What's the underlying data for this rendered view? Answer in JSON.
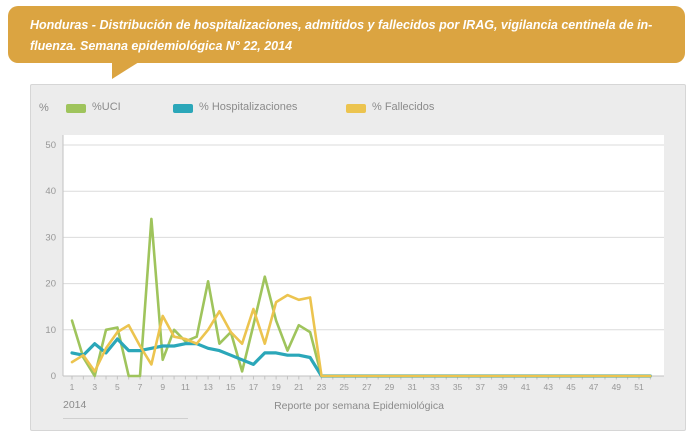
{
  "banner": {
    "line1": "Honduras - Distribución de hospitalizaciones, admitidos y fallecidos por IRAG, vigilancia centinela de in-",
    "line2": "fluenza. Semana epidemiológica N° 22, 2014",
    "color": "#dba441"
  },
  "chart_data": {
    "type": "line",
    "title": "Honduras - Distribución de hospitalizaciones, admitidos y fallecidos por IRAG, vigilancia centinela de influenza. Semana epidemiológica N° 22, 2014",
    "xlabel": "Reporte por semana Epidemiológica",
    "x_note": "2014",
    "ylabel": "%",
    "ylim": [
      0,
      50
    ],
    "yticks": [
      0,
      10,
      20,
      30,
      40,
      50
    ],
    "x_tick_labels": [
      1,
      3,
      5,
      7,
      9,
      11,
      13,
      15,
      17,
      19,
      21,
      23,
      25,
      27,
      29,
      31,
      33,
      35,
      37,
      39,
      41,
      43,
      45,
      47,
      49,
      51
    ],
    "weeks": [
      1,
      2,
      3,
      4,
      5,
      6,
      7,
      8,
      9,
      10,
      11,
      12,
      13,
      14,
      15,
      16,
      17,
      18,
      19,
      20,
      21,
      22,
      23,
      24,
      25,
      26,
      27,
      28,
      29,
      30,
      31,
      32,
      33,
      34,
      35,
      36,
      37,
      38,
      39,
      40,
      41,
      42,
      43,
      44,
      45,
      46,
      47,
      48,
      49,
      50,
      51,
      52
    ],
    "grid": true,
    "legend_position": "top",
    "colors": {
      "grid": "#dbdbdb",
      "axis": "#c2c2c2",
      "tick_text": "#979797",
      "plot_bg": "#ffffff"
    },
    "series": [
      {
        "name": "%UCI",
        "color": "#9fc45c",
        "values": [
          12,
          4,
          0,
          10,
          10.5,
          0,
          0,
          34,
          3.5,
          10,
          7.5,
          8.5,
          20.5,
          7,
          9.5,
          1,
          11,
          21.5,
          12,
          5.5,
          11,
          9.5,
          0,
          0,
          0,
          0,
          0,
          0,
          0,
          0,
          0,
          0,
          0,
          0,
          0,
          0,
          0,
          0,
          0,
          0,
          0,
          0,
          0,
          0,
          0,
          0,
          0,
          0,
          0,
          0,
          0,
          0
        ]
      },
      {
        "name": "% Hospitalizaciones",
        "color": "#2ba7b9",
        "values": [
          5,
          4.5,
          7,
          5,
          8,
          5.5,
          5.5,
          6,
          6.5,
          6.5,
          7,
          7,
          6,
          5.5,
          4.5,
          3.5,
          2.5,
          5,
          5,
          4.5,
          4.5,
          4,
          0,
          0,
          0,
          0,
          0,
          0,
          0,
          0,
          0,
          0,
          0,
          0,
          0,
          0,
          0,
          0,
          0,
          0,
          0,
          0,
          0,
          0,
          0,
          0,
          0,
          0,
          0,
          0,
          0,
          0
        ]
      },
      {
        "name": "% Fallecidos",
        "color": "#ecc44f",
        "values": [
          3,
          4.5,
          1,
          6,
          9.5,
          11,
          6.5,
          2.5,
          13,
          8.5,
          8,
          7,
          10,
          14,
          9.5,
          7,
          14.5,
          7,
          16,
          17.5,
          16.5,
          17,
          0,
          0,
          0,
          0,
          0,
          0,
          0,
          0,
          0,
          0,
          0,
          0,
          0,
          0,
          0,
          0,
          0,
          0,
          0,
          0,
          0,
          0,
          0,
          0,
          0,
          0,
          0,
          0,
          0,
          0
        ]
      }
    ]
  }
}
